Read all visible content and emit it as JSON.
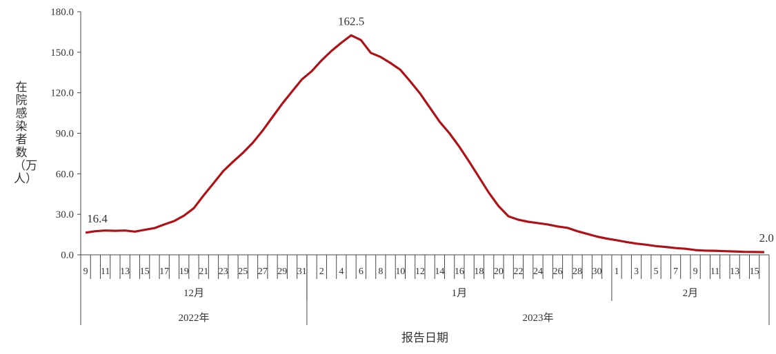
{
  "chart_data": {
    "type": "line",
    "title": "",
    "xlabel": "报告日期",
    "ylabel": "在院感染者数（万人）",
    "ylim": [
      0,
      180
    ],
    "yticks": [
      "0.0",
      "30.0",
      "60.0",
      "90.0",
      "120.0",
      "150.0",
      "180.0"
    ],
    "grid": false,
    "line_color": "#B01116",
    "months": [
      {
        "label": "12月",
        "year": "2022年",
        "start_day": 9,
        "days": 23
      },
      {
        "label": "1月",
        "year": "2023年",
        "start_day": 1,
        "days": 31
      },
      {
        "label": "2月",
        "year": "2023年",
        "start_day": 1,
        "days": 16
      }
    ],
    "years": [
      "2022年",
      "2023年"
    ],
    "annotations": [
      {
        "date": "2022-12-09",
        "label": "16.4"
      },
      {
        "date": "2023-01-05",
        "label": "162.5"
      },
      {
        "date": "2023-02-16",
        "label": "2.0"
      }
    ],
    "x_start": "2022-12-09",
    "x_end": "2023-02-16",
    "values": [
      16.4,
      17.5,
      18.0,
      17.8,
      18.0,
      17.2,
      18.5,
      19.8,
      22.5,
      25.0,
      29.0,
      34.5,
      44.0,
      53.0,
      62.0,
      69.0,
      75.5,
      83.0,
      92.0,
      102.0,
      112.0,
      121.0,
      130.0,
      136.0,
      144.0,
      151.0,
      157.0,
      162.5,
      159.0,
      149.5,
      146.5,
      142.0,
      137.0,
      128.5,
      119.5,
      109.0,
      98.5,
      90.0,
      80.0,
      69.0,
      57.5,
      46.0,
      36.0,
      28.5,
      26.0,
      24.5,
      23.5,
      22.5,
      21.0,
      20.0,
      17.5,
      15.5,
      13.5,
      12.0,
      10.8,
      9.5,
      8.3,
      7.5,
      6.5,
      5.8,
      5.0,
      4.5,
      3.5,
      3.1,
      3.0,
      2.7,
      2.5,
      2.2,
      2.1,
      2.0
    ]
  }
}
